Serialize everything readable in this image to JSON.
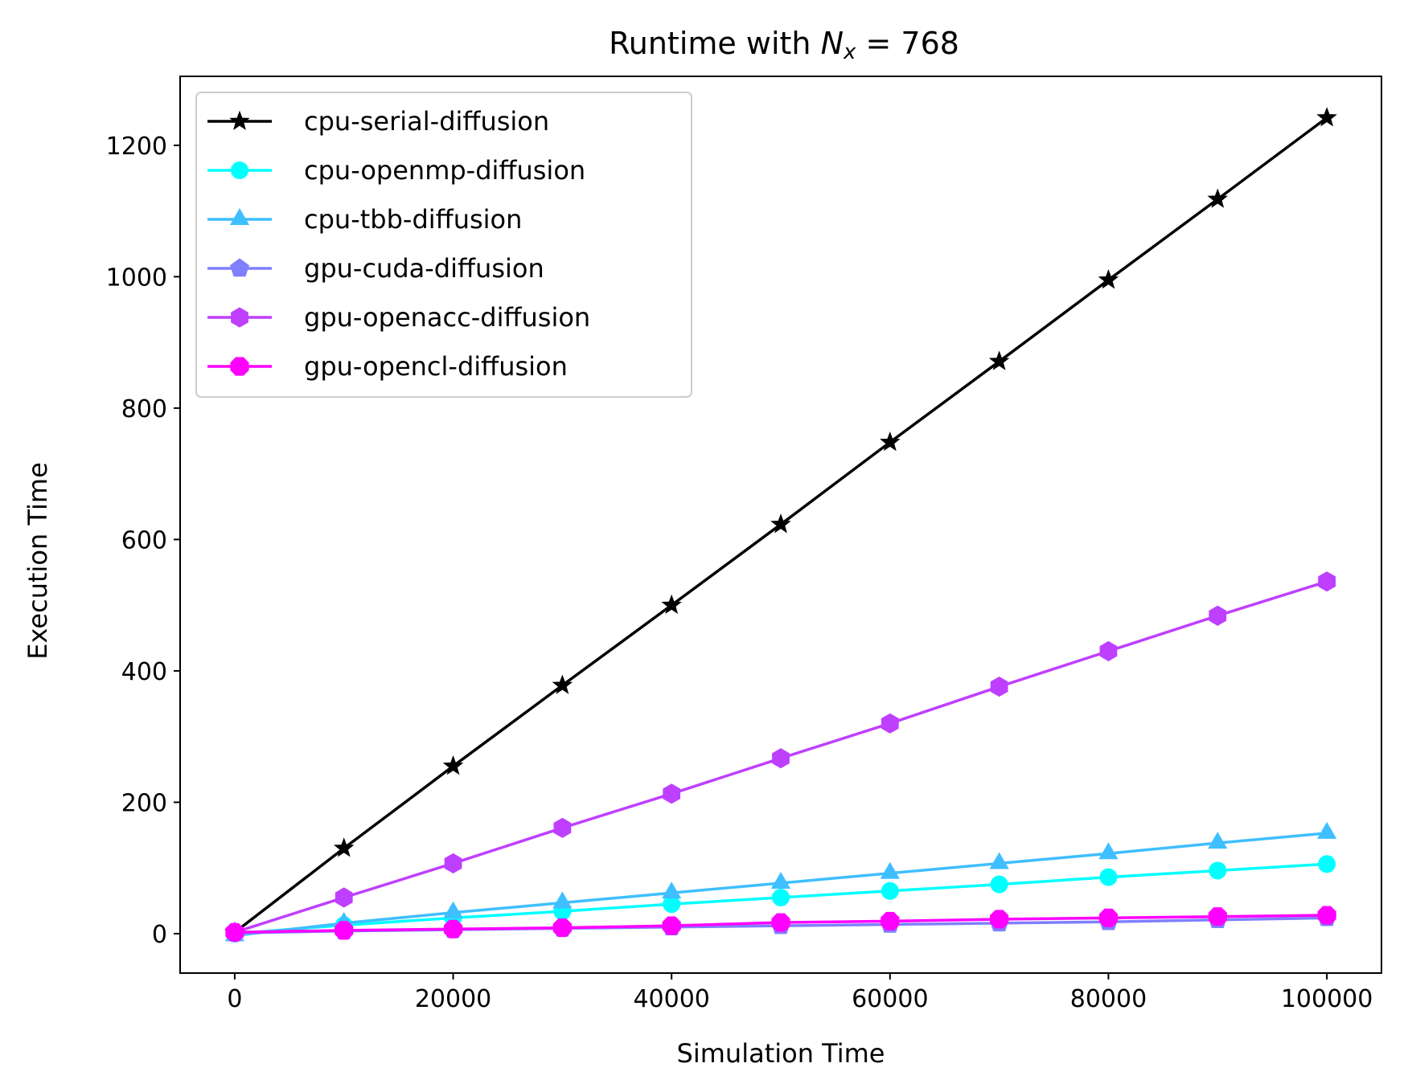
{
  "chart_data": {
    "type": "line",
    "title": {
      "prefix": "Runtime with ",
      "symbol": "N",
      "subscript": "x",
      "suffix": " = 768"
    },
    "xlabel": "Simulation Time",
    "ylabel": "Execution Time",
    "xlim": [
      -5000,
      105000
    ],
    "ylim": [
      -60,
      1305
    ],
    "xticks": [
      0,
      20000,
      40000,
      60000,
      80000,
      100000
    ],
    "yticks": [
      0,
      200,
      400,
      600,
      800,
      1000,
      1200
    ],
    "grid": false,
    "legend_position": "top-left",
    "x": [
      0,
      10000,
      20000,
      30000,
      40000,
      50000,
      60000,
      70000,
      80000,
      90000,
      100000
    ],
    "series": [
      {
        "name": "cpu-serial-diffusion",
        "color": "#000000",
        "marker": "star",
        "values": [
          2,
          130,
          255,
          378,
          500,
          623,
          748,
          871,
          995,
          1118,
          1242
        ]
      },
      {
        "name": "cpu-openmp-diffusion",
        "color": "#00ffff",
        "marker": "circle",
        "values": [
          0,
          13,
          24,
          34,
          45,
          55,
          65,
          75,
          86,
          96,
          106
        ]
      },
      {
        "name": "cpu-tbb-diffusion",
        "color": "#3fbfff",
        "marker": "triangle",
        "values": [
          -3,
          16,
          32,
          47,
          62,
          77,
          92,
          107,
          122,
          138,
          153
        ]
      },
      {
        "name": "gpu-cuda-diffusion",
        "color": "#7f7fff",
        "marker": "pentagon",
        "values": [
          1,
          4,
          6,
          8,
          10,
          12,
          14,
          16,
          18,
          21,
          24
        ]
      },
      {
        "name": "gpu-openacc-diffusion",
        "color": "#bf3fff",
        "marker": "hexagon",
        "values": [
          2,
          55,
          107,
          161,
          213,
          267,
          320,
          376,
          430,
          484,
          536
        ]
      },
      {
        "name": "gpu-opencl-diffusion",
        "color": "#ff00ff",
        "marker": "octagon",
        "values": [
          2,
          5,
          7,
          9,
          12,
          17,
          19,
          22,
          24,
          26,
          28
        ]
      }
    ]
  }
}
